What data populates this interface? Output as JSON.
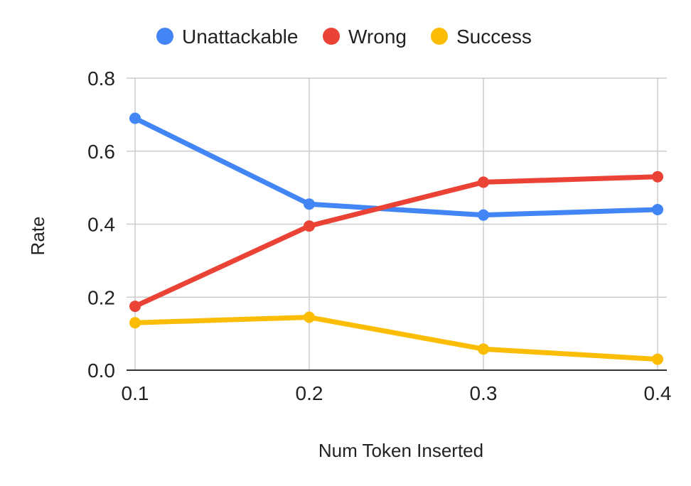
{
  "chart_data": {
    "type": "line",
    "title": "",
    "xlabel": "Num Token Inserted",
    "ylabel": "Rate",
    "x": [
      0.1,
      0.2,
      0.3,
      0.4
    ],
    "x_tick_labels": [
      "0.1",
      "0.2",
      "0.3",
      "0.4"
    ],
    "y_ticks": [
      0.0,
      0.2,
      0.4,
      0.6,
      0.8
    ],
    "y_tick_labels": [
      "0.0",
      "0.2",
      "0.4",
      "0.6",
      "0.8"
    ],
    "xlim": [
      0.1,
      0.4
    ],
    "ylim": [
      0.0,
      0.8
    ],
    "grid": true,
    "legend_position": "top",
    "series": [
      {
        "name": "Unattackable",
        "color": "#4285F4",
        "values": [
          0.69,
          0.455,
          0.425,
          0.44
        ]
      },
      {
        "name": "Wrong",
        "color": "#EA4335",
        "values": [
          0.175,
          0.395,
          0.515,
          0.53
        ]
      },
      {
        "name": "Success",
        "color": "#FBBC04",
        "values": [
          0.13,
          0.145,
          0.058,
          0.03
        ]
      }
    ]
  }
}
